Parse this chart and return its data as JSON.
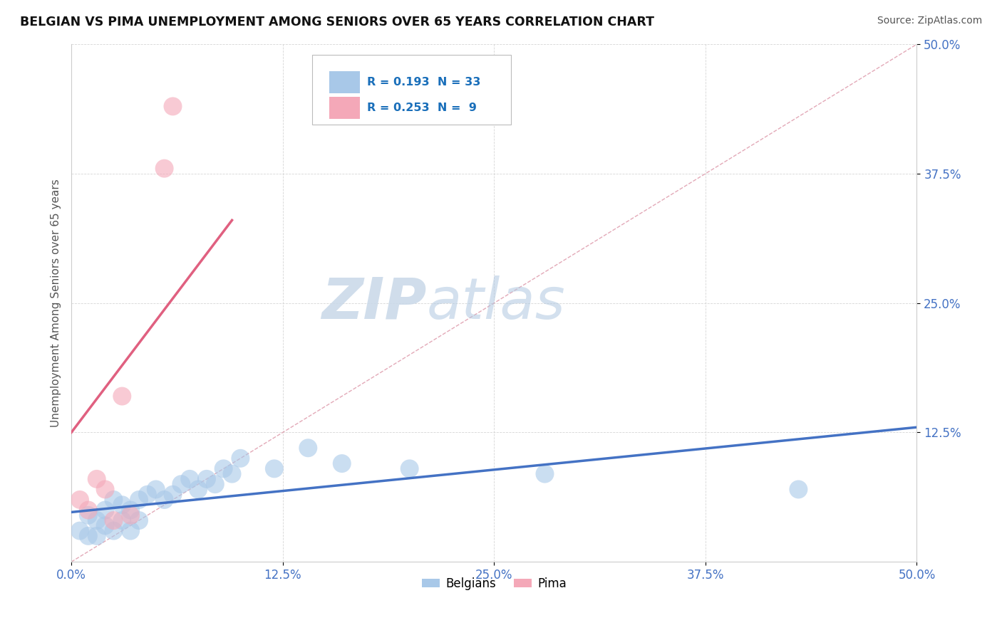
{
  "title": "BELGIAN VS PIMA UNEMPLOYMENT AMONG SENIORS OVER 65 YEARS CORRELATION CHART",
  "source": "Source: ZipAtlas.com",
  "ylabel": "Unemployment Among Seniors over 65 years",
  "xlim": [
    0.0,
    0.5
  ],
  "ylim": [
    0.0,
    0.5
  ],
  "xtick_labels": [
    "0.0%",
    "12.5%",
    "25.0%",
    "37.5%",
    "50.0%"
  ],
  "xtick_vals": [
    0.0,
    0.125,
    0.25,
    0.375,
    0.5
  ],
  "ytick_labels": [
    "12.5%",
    "25.0%",
    "37.5%",
    "50.0%"
  ],
  "ytick_vals": [
    0.125,
    0.25,
    0.375,
    0.5
  ],
  "belgian_R": "0.193",
  "belgian_N": "33",
  "pima_R": "0.253",
  "pima_N": "9",
  "belgian_color": "#a8c8e8",
  "pima_color": "#f4a8b8",
  "belgian_line_color": "#4472c4",
  "pima_line_color": "#e06080",
  "diagonal_color": "#e0a0b0",
  "tick_color": "#4472c4",
  "background_color": "#ffffff",
  "watermark_zip": "ZIP",
  "watermark_atlas": "atlas",
  "belgian_x": [
    0.005,
    0.01,
    0.01,
    0.015,
    0.015,
    0.02,
    0.02,
    0.025,
    0.025,
    0.03,
    0.03,
    0.035,
    0.035,
    0.04,
    0.04,
    0.045,
    0.05,
    0.055,
    0.06,
    0.065,
    0.07,
    0.075,
    0.08,
    0.085,
    0.09,
    0.095,
    0.1,
    0.12,
    0.14,
    0.16,
    0.2,
    0.28,
    0.43
  ],
  "belgian_y": [
    0.03,
    0.025,
    0.045,
    0.025,
    0.04,
    0.035,
    0.05,
    0.03,
    0.06,
    0.04,
    0.055,
    0.03,
    0.05,
    0.04,
    0.06,
    0.065,
    0.07,
    0.06,
    0.065,
    0.075,
    0.08,
    0.07,
    0.08,
    0.075,
    0.09,
    0.085,
    0.1,
    0.09,
    0.11,
    0.095,
    0.09,
    0.085,
    0.07
  ],
  "pima_x": [
    0.005,
    0.01,
    0.015,
    0.02,
    0.025,
    0.03,
    0.035,
    0.055,
    0.06
  ],
  "pima_y": [
    0.06,
    0.05,
    0.08,
    0.07,
    0.04,
    0.16,
    0.045,
    0.38,
    0.44
  ],
  "belgian_line_x0": 0.0,
  "belgian_line_x1": 0.5,
  "belgian_line_y0": 0.048,
  "belgian_line_y1": 0.13,
  "pima_line_x0": 0.0,
  "pima_line_x1": 0.095,
  "pima_line_y0": 0.125,
  "pima_line_y1": 0.33
}
